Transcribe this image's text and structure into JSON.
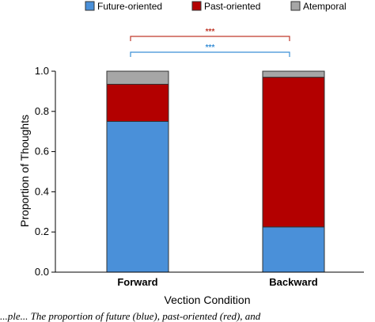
{
  "chart_data": {
    "type": "bar",
    "stacked": true,
    "categories": [
      "Forward",
      "Backward"
    ],
    "series": [
      {
        "name": "Future-oriented",
        "color": "#4a90d9",
        "values": [
          0.75,
          0.225
        ]
      },
      {
        "name": "Past-oriented",
        "color": "#b30000",
        "values": [
          0.185,
          0.745
        ]
      },
      {
        "name": "Atemporal",
        "color": "#a6a6a6",
        "values": [
          0.065,
          0.03
        ]
      }
    ],
    "xlabel": "Vection Condition",
    "ylabel": "Proportion of Thoughts",
    "ylim": [
      0,
      1.0
    ],
    "yticks": [
      "0.0",
      "0.2",
      "0.4",
      "0.6",
      "0.8",
      "1.0"
    ],
    "legend_position": "top",
    "grid": false,
    "annotations": [
      {
        "text": "***",
        "color": "#c0392b",
        "between": [
          "Forward",
          "Backward"
        ],
        "series": "Past-oriented"
      },
      {
        "text": "***",
        "color": "#3a8fd6",
        "between": [
          "Forward",
          "Backward"
        ],
        "series": "Future-oriented"
      }
    ]
  },
  "caption": "...ple... The proportion of future (blue), past-oriented (red), and"
}
